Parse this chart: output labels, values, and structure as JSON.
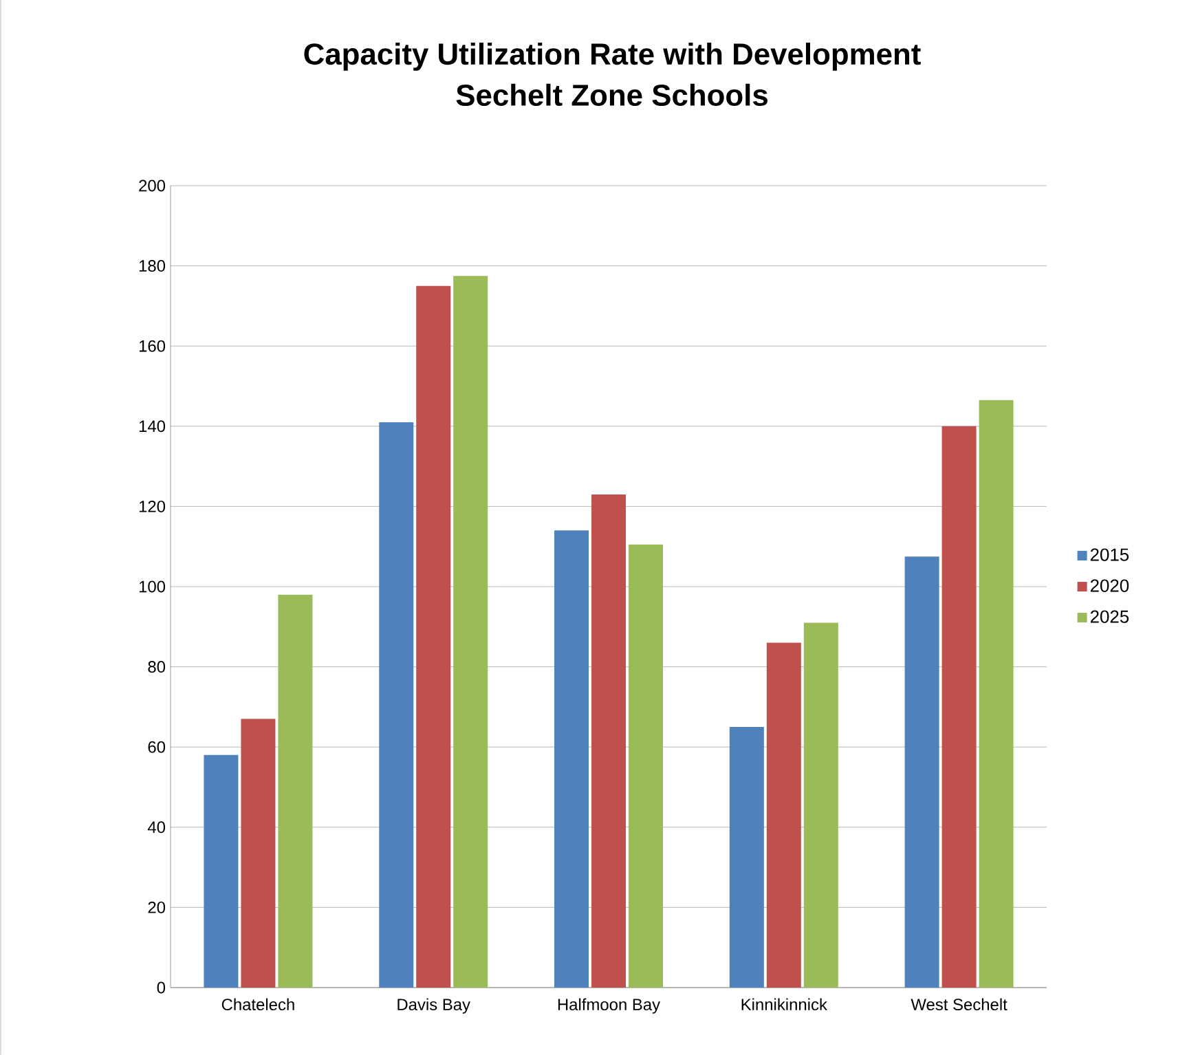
{
  "chart_data": {
    "type": "bar",
    "title": "Capacity Utilization Rate with Development\nSechelt Zone Schools",
    "categories": [
      "Chatelech",
      "Davis Bay",
      "Halfmoon Bay",
      "Kinnikinnick",
      "West Sechelt"
    ],
    "series": [
      {
        "name": "2015",
        "color": "#4f81bd",
        "values": [
          58,
          141,
          114,
          65,
          107.5
        ]
      },
      {
        "name": "2020",
        "color": "#c0504d",
        "values": [
          67,
          175,
          123,
          86,
          140
        ]
      },
      {
        "name": "2025",
        "color": "#9bbb59",
        "values": [
          98,
          177.5,
          110.5,
          91,
          146.5
        ]
      }
    ],
    "ylim": [
      0,
      200
    ],
    "yticks": [
      0,
      20,
      40,
      60,
      80,
      100,
      120,
      140,
      160,
      180,
      200
    ],
    "grid": "y",
    "legend": "right"
  }
}
